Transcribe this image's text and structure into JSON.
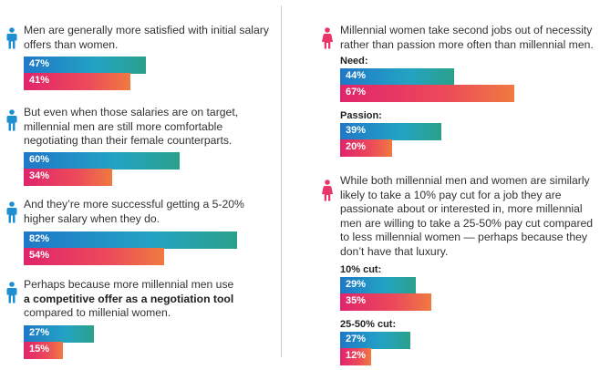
{
  "colors": {
    "male": "#1e8fd0",
    "female": "#e8356a",
    "divider": "#cfcfcf"
  },
  "icons": {
    "male": "male-person-icon",
    "female": "female-person-icon"
  },
  "chart_data": {
    "type": "bar",
    "orientation": "horizontal",
    "title": "",
    "groups": [
      {
        "statement": "Men are generally more satisfied with initial salary offers than women.",
        "icon": "male-person-icon",
        "sublabel": "",
        "series": [
          {
            "values": [
              47
            ],
            "label": "47%"
          },
          {
            "values": [
              41
            ],
            "label": "41%"
          }
        ]
      },
      {
        "statement": "But even when those salaries are on target, millennial men are still more comfortable negotiating than their female counterparts.",
        "icon": "male-person-icon",
        "sublabel": "",
        "series": [
          {
            "values": [
              60
            ],
            "label": "60%"
          },
          {
            "values": [
              34
            ],
            "label": "34%"
          }
        ]
      },
      {
        "statement": "And they’re more successful getting a 5-20% higher salary when they do.",
        "icon": "male-person-icon",
        "sublabel": "",
        "series": [
          {
            "values": [
              82
            ],
            "label": "82%"
          },
          {
            "values": [
              54
            ],
            "label": "54%"
          }
        ]
      },
      {
        "statement_parts": [
          "Perhaps because more millennial men use",
          "a competitive offer as a negotiation tool",
          "compared to millenial women."
        ],
        "icon": "male-person-icon",
        "sublabel": "",
        "series": [
          {
            "values": [
              27
            ],
            "label": "27%"
          },
          {
            "values": [
              15
            ],
            "label": "15%"
          }
        ]
      },
      {
        "statement": "Millennial women take second jobs out of necessity rather than passion more often than millennial men.",
        "icon": "female-person-icon",
        "sublabel": "Need:",
        "series": [
          {
            "values": [
              44
            ],
            "label": "44%"
          },
          {
            "values": [
              67
            ],
            "label": "67%"
          }
        ]
      },
      {
        "statement": "",
        "icon": "",
        "sublabel": "Passion:",
        "series": [
          {
            "values": [
              39
            ],
            "label": "39%"
          },
          {
            "values": [
              20
            ],
            "label": "20%"
          }
        ]
      },
      {
        "statement": "While both millennial men and women are similarly likely to take a 10% pay cut for a job they are passionate about or interested in, more millennial men are willing to take a 25-50% pay cut compared to less millennial women — perhaps because they don’t have that luxury.",
        "icon": "female-person-icon",
        "sublabel": "10% cut:",
        "series": [
          {
            "values": [
              29
            ],
            "label": "29%"
          },
          {
            "values": [
              35
            ],
            "label": "35%"
          }
        ]
      },
      {
        "statement": "",
        "icon": "",
        "sublabel": "25-50% cut:",
        "series": [
          {
            "values": [
              27
            ],
            "label": "27%"
          },
          {
            "values": [
              12
            ],
            "label": "12%"
          }
        ]
      }
    ]
  }
}
